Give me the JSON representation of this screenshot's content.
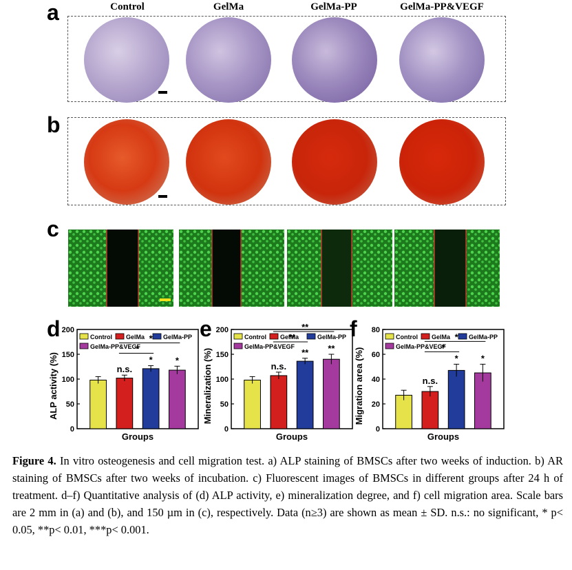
{
  "panel_labels": [
    "a",
    "b",
    "c",
    "d",
    "e",
    "f"
  ],
  "group_labels": [
    "Control",
    "GelMa",
    "GelMa-PP",
    "GelMa-PP&VEGF"
  ],
  "chart_data": [
    {
      "type": "bar",
      "categories": [
        "Control",
        "GelMa",
        "GelMa-PP",
        "GelMa-PP&VEGF"
      ],
      "values": [
        98,
        102,
        121,
        118
      ],
      "errors": [
        7,
        6,
        6,
        8
      ],
      "xlabel": "Groups",
      "ylabel": "ALP activity (%)",
      "ylim": [
        0,
        200
      ],
      "yticks": [
        0,
        50,
        100,
        150,
        200
      ],
      "colors": [
        "#e6e24a",
        "#d41f1f",
        "#223c9c",
        "#a43a9e"
      ],
      "bar_annotations": [
        "",
        "n.s.",
        "*",
        "*"
      ],
      "comparison_annotations": [
        "*",
        "*"
      ],
      "legend": [
        "Control",
        "GelMa",
        "GelMa-PP",
        "GelMa-PP&VEGF"
      ]
    },
    {
      "type": "bar",
      "categories": [
        "Control",
        "GelMa",
        "GelMa-PP",
        "GelMa-PP&VEGF"
      ],
      "values": [
        98,
        107,
        136,
        140
      ],
      "errors": [
        7,
        7,
        6,
        10
      ],
      "xlabel": "Groups",
      "ylabel": "Mineralization (%)",
      "ylim": [
        0,
        200
      ],
      "yticks": [
        0,
        50,
        100,
        150,
        200
      ],
      "colors": [
        "#e6e24a",
        "#d41f1f",
        "#223c9c",
        "#a43a9e"
      ],
      "bar_annotations": [
        "",
        "n.s.",
        "**",
        "**"
      ],
      "comparison_annotations": [
        "**",
        "**"
      ],
      "legend": [
        "Control",
        "GelMa",
        "GelMa-PP",
        "GelMa-PP&VEGF"
      ]
    },
    {
      "type": "bar",
      "categories": [
        "Control",
        "GelMa",
        "GelMa-PP",
        "GelMa-PP&VEGF"
      ],
      "values": [
        27,
        30,
        47,
        45
      ],
      "errors": [
        4,
        4,
        5,
        7
      ],
      "xlabel": "Groups",
      "ylabel": "Migration area (%)",
      "ylim": [
        0,
        80
      ],
      "yticks": [
        0,
        20,
        40,
        60,
        80
      ],
      "colors": [
        "#e6e24a",
        "#d41f1f",
        "#223c9c",
        "#a43a9e"
      ],
      "bar_annotations": [
        "",
        "n.s.",
        "*",
        "*"
      ],
      "comparison_annotations": [
        "*",
        "*"
      ],
      "legend": [
        "Control",
        "GelMa",
        "GelMa-PP",
        "GelMa-PP&VEGF"
      ]
    }
  ],
  "caption": {
    "label": "Figure 4.",
    "text": " In vitro osteogenesis and cell migration test. a) ALP staining of BMSCs after two weeks of induction. b) AR staining of BMSCs after two weeks of incubation. c) Fluorescent images of BMSCs in different groups after 24 h of treatment. d–f) Quantitative analysis of (d) ALP activity, e) mineralization degree, and f) cell migration area. Scale bars are 2 mm in (a) and (b), and 150 µm in (c), respectively. Data (n≥3) are shown as mean ± SD. n.s.: no significant, * p< 0.05, **p< 0.01, ***p< 0.001."
  }
}
